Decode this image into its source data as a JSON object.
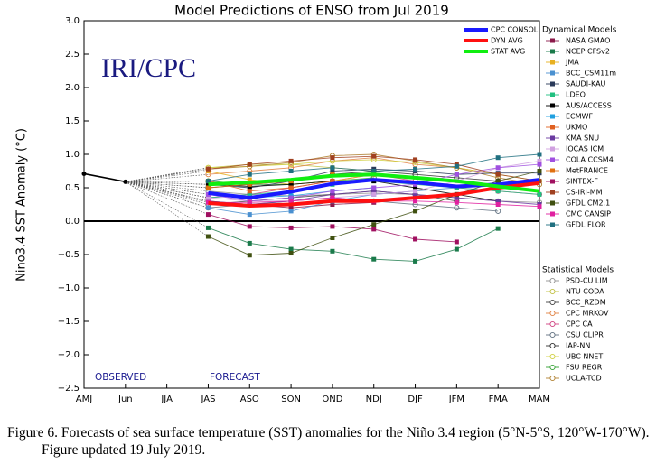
{
  "chart_data": {
    "type": "line",
    "title": "Model Predictions of ENSO from Jul 2019",
    "y_label": "Nino3.4 SST Anomaly (°C)",
    "logo": "IRI/CPC",
    "annotations": [
      "OBSERVED",
      "FORECAST"
    ],
    "categories": [
      "AMJ",
      "Jun",
      "JJA",
      "JAS",
      "ASO",
      "SON",
      "OND",
      "NDJ",
      "DJF",
      "JFM",
      "FMA",
      "MAM"
    ],
    "ylim": [
      -2.5,
      3.0
    ],
    "yticks": [
      {
        "value": 3.0,
        "label": "3.0"
      },
      {
        "value": 2.5,
        "label": "2.5"
      },
      {
        "value": 2.0,
        "label": "2.0"
      },
      {
        "value": 1.5,
        "label": "1.5"
      },
      {
        "value": 1.0,
        "label": "1.0"
      },
      {
        "value": 0.5,
        "label": "0.5"
      },
      {
        "value": 0.0,
        "label": "0.0"
      },
      {
        "value": -0.5,
        "label": "−0.5"
      },
      {
        "value": -1.0,
        "label": "−1.0"
      },
      {
        "value": -1.5,
        "label": "−1.5"
      },
      {
        "value": -2.0,
        "label": "−2.0"
      },
      {
        "value": -2.5,
        "label": "−2.5"
      }
    ],
    "observed": {
      "color": "#000000",
      "values": [
        0.71,
        0.59,
        null,
        null,
        null,
        null,
        null,
        null,
        null,
        null,
        null,
        null
      ]
    },
    "series": [
      {
        "name": "CPC CONSOL",
        "color": "#1a1aff",
        "values": [
          null,
          null,
          null,
          0.42,
          0.35,
          0.44,
          0.56,
          0.62,
          0.58,
          0.52,
          0.55,
          0.62
        ]
      },
      {
        "name": "DYN AVG",
        "color": "#ff1010",
        "values": [
          null,
          null,
          null,
          0.27,
          0.23,
          0.25,
          0.3,
          0.3,
          0.35,
          0.4,
          0.5,
          0.57
        ]
      },
      {
        "name": "STAT AVG",
        "color": "#10ee10",
        "values": [
          null,
          null,
          null,
          0.55,
          0.58,
          0.62,
          0.68,
          0.7,
          0.65,
          0.6,
          0.52,
          0.45
        ]
      }
    ],
    "dynamical_models": {
      "title": "Dynamical Models",
      "marker": "filled-square",
      "series": [
        {
          "name": "NASA GMAO",
          "color": "#8b1a4a",
          "values": [
            null,
            null,
            null,
            0.3,
            0.25,
            0.2,
            0.25,
            0.28,
            0.35,
            null,
            null,
            null
          ]
        },
        {
          "name": "NCEP CFSv2",
          "color": "#1a7a4a",
          "values": [
            null,
            null,
            null,
            -0.1,
            -0.33,
            -0.42,
            -0.45,
            -0.57,
            -0.6,
            -0.42,
            -0.11,
            null
          ]
        },
        {
          "name": "JMA",
          "color": "#e8b020",
          "values": [
            null,
            null,
            null,
            0.75,
            0.62,
            0.55,
            0.6,
            0.7,
            null,
            null,
            null,
            null
          ]
        },
        {
          "name": "BCC_CSM11m",
          "color": "#4a90d0",
          "values": [
            null,
            null,
            null,
            0.2,
            0.1,
            0.15,
            0.3,
            0.4,
            0.45,
            0.5,
            0.55,
            null
          ]
        },
        {
          "name": "SAUDI-KAU",
          "color": "#2a3a5a",
          "values": [
            null,
            null,
            null,
            0.55,
            0.5,
            0.6,
            0.75,
            0.78,
            0.75,
            0.7,
            0.72,
            0.72
          ]
        },
        {
          "name": "LDEO",
          "color": "#20c080",
          "values": [
            null,
            null,
            null,
            0.35,
            0.4,
            0.45,
            0.55,
            0.6,
            0.55,
            0.5,
            0.45,
            0.4
          ]
        },
        {
          "name": "AUS/ACCESS",
          "color": "#000000",
          "values": [
            null,
            null,
            null,
            0.55,
            0.52,
            0.55,
            0.6,
            0.6,
            0.5,
            0.4,
            0.3,
            null
          ]
        },
        {
          "name": "ECMWF",
          "color": "#20a0e0",
          "values": [
            null,
            null,
            null,
            0.4,
            0.35,
            0.38,
            0.45,
            0.5,
            null,
            null,
            null,
            null
          ]
        },
        {
          "name": "UKMO",
          "color": "#e06020",
          "values": [
            null,
            null,
            null,
            0.6,
            0.45,
            0.5,
            0.6,
            null,
            null,
            null,
            null,
            null
          ]
        },
        {
          "name": "KMA SNU",
          "color": "#6a3aa0",
          "values": [
            null,
            null,
            null,
            0.3,
            0.25,
            0.3,
            0.4,
            0.45,
            0.4,
            0.35,
            0.3,
            0.25
          ]
        },
        {
          "name": "IOCAS ICM",
          "color": "#d0a0e0",
          "values": [
            null,
            null,
            null,
            0.35,
            0.3,
            0.3,
            0.35,
            0.4,
            0.45,
            0.6,
            0.8,
            0.9
          ]
        },
        {
          "name": "COLA CCSM4",
          "color": "#a050e0",
          "values": [
            null,
            null,
            null,
            0.4,
            0.3,
            0.35,
            0.45,
            0.5,
            0.55,
            0.7,
            0.8,
            0.85
          ]
        },
        {
          "name": "MetFRANCE",
          "color": "#e07010",
          "values": [
            null,
            null,
            null,
            0.5,
            0.55,
            0.6,
            0.7,
            null,
            null,
            null,
            null,
            null
          ]
        },
        {
          "name": "SINTEX-F",
          "color": "#a01060",
          "values": [
            null,
            null,
            null,
            0.1,
            -0.08,
            -0.1,
            -0.08,
            -0.12,
            -0.27,
            -0.31,
            null,
            null
          ]
        },
        {
          "name": "CS-IRI-MM",
          "color": "#a04020",
          "values": [
            null,
            null,
            null,
            0.78,
            0.85,
            0.9,
            0.95,
            0.97,
            0.92,
            0.85,
            0.7,
            0.6
          ]
        },
        {
          "name": "GFDL CM2.1",
          "color": "#405010",
          "values": [
            null,
            null,
            null,
            -0.23,
            -0.51,
            -0.48,
            -0.25,
            -0.05,
            0.15,
            0.4,
            0.6,
            0.75
          ]
        },
        {
          "name": "CMC CANSIP",
          "color": "#e020a0",
          "values": [
            null,
            null,
            null,
            0.28,
            0.28,
            0.3,
            0.35,
            0.3,
            0.3,
            0.28,
            0.25,
            0.22
          ]
        },
        {
          "name": "GFDL FLOR",
          "color": "#207080",
          "values": [
            null,
            null,
            null,
            0.6,
            0.7,
            0.75,
            0.8,
            0.75,
            0.78,
            0.82,
            0.95,
            1.0
          ]
        }
      ]
    },
    "statistical_models": {
      "title": "Statistical Models",
      "marker": "open-circle",
      "series": [
        {
          "name": "PSD-CU LIM",
          "color": "#909090",
          "values": [
            null,
            null,
            null,
            0.45,
            0.4,
            0.38,
            0.4,
            0.42,
            0.4,
            0.35,
            0.3,
            0.28
          ]
        },
        {
          "name": "NTU CODA",
          "color": "#c0c040",
          "values": [
            null,
            null,
            null,
            0.8,
            0.85,
            0.85,
            0.8,
            0.75,
            null,
            null,
            null,
            null
          ]
        },
        {
          "name": "BCC_RZDM",
          "color": "#404040",
          "values": [
            null,
            null,
            null,
            0.25,
            0.3,
            0.35,
            0.4,
            0.45,
            0.4,
            0.3,
            null,
            null
          ]
        },
        {
          "name": "CPC MRKOV",
          "color": "#e08040",
          "values": [
            null,
            null,
            null,
            0.7,
            0.75,
            0.8,
            0.9,
            0.95,
            0.85,
            0.8,
            0.7,
            null
          ]
        },
        {
          "name": "CPC CA",
          "color": "#d04080",
          "values": [
            null,
            null,
            null,
            0.35,
            0.4,
            0.5,
            0.6,
            0.7,
            0.6,
            0.5,
            0.45,
            0.4
          ]
        },
        {
          "name": "CSU CLIPR",
          "color": "#607080",
          "values": [
            null,
            null,
            null,
            0.2,
            0.25,
            0.3,
            0.35,
            0.3,
            0.25,
            0.2,
            0.15,
            null
          ]
        },
        {
          "name": "IAP-NN",
          "color": "#303030",
          "values": [
            null,
            null,
            null,
            0.5,
            0.55,
            0.6,
            0.7,
            0.75,
            0.7,
            0.65,
            0.6,
            null
          ]
        },
        {
          "name": "UBC NNET",
          "color": "#d0d040",
          "values": [
            null,
            null,
            null,
            0.8,
            0.82,
            0.85,
            0.9,
            0.92,
            0.88,
            0.8,
            0.7,
            0.6
          ]
        },
        {
          "name": "FSU REGR",
          "color": "#30a030",
          "values": [
            null,
            null,
            null,
            0.6,
            0.55,
            0.55,
            0.6,
            0.65,
            null,
            null,
            null,
            null
          ]
        },
        {
          "name": "UCLA-TCD",
          "color": "#b08030",
          "values": [
            null,
            null,
            null,
            0.78,
            0.82,
            0.88,
            0.98,
            1.0,
            0.9,
            0.8,
            0.65,
            0.55
          ]
        }
      ]
    },
    "caption": "Figure 6. Forecasts of sea surface temperature (SST) anomalies for the Niño 3.4 region (5°N-5°S, 120°W-170°W). Figure updated 19 July 2019."
  }
}
